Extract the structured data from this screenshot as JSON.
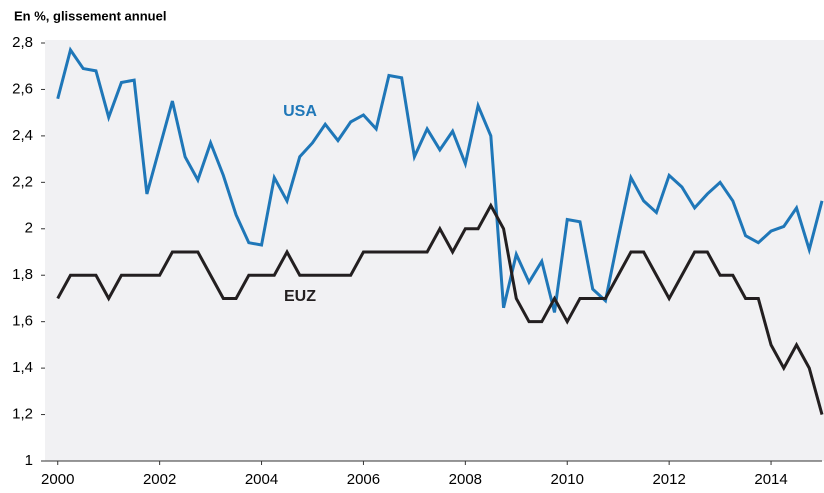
{
  "chart_data": {
    "type": "line",
    "title": "En %, glissement annuel",
    "x": [
      2000,
      2000.25,
      2000.5,
      2000.75,
      2001,
      2001.25,
      2001.5,
      2001.75,
      2002,
      2002.25,
      2002.5,
      2002.75,
      2003,
      2003.25,
      2003.5,
      2003.75,
      2004,
      2004.25,
      2004.5,
      2004.75,
      2005,
      2005.25,
      2005.5,
      2005.75,
      2006,
      2006.25,
      2006.5,
      2006.75,
      2007,
      2007.25,
      2007.5,
      2007.75,
      2008,
      2008.25,
      2008.5,
      2008.75,
      2009,
      2009.25,
      2009.5,
      2009.75,
      2010,
      2010.25,
      2010.5,
      2010.75,
      2011,
      2011.25,
      2011.5,
      2011.75,
      2012,
      2012.25,
      2012.5,
      2012.75,
      2013,
      2013.25,
      2013.5,
      2013.75,
      2014,
      2014.25,
      2014.5,
      2014.75,
      2015
    ],
    "series": [
      {
        "name": "USA",
        "color": "#1f77b8",
        "values": [
          2.56,
          2.77,
          2.69,
          2.68,
          2.48,
          2.63,
          2.64,
          2.15,
          2.35,
          2.55,
          2.31,
          2.21,
          2.37,
          2.23,
          2.06,
          1.94,
          1.93,
          2.22,
          2.12,
          2.31,
          2.37,
          2.45,
          2.38,
          2.46,
          2.49,
          2.43,
          2.66,
          2.65,
          2.31,
          2.43,
          2.34,
          2.42,
          2.28,
          2.53,
          2.4,
          1.66,
          1.89,
          1.77,
          1.86,
          1.64,
          2.04,
          2.03,
          1.74,
          1.69,
          1.96,
          2.22,
          2.12,
          2.07,
          2.23,
          2.18,
          2.09,
          2.15,
          2.2,
          2.12,
          1.97,
          1.94,
          1.99,
          2.01,
          2.09,
          1.91,
          2.12
        ]
      },
      {
        "name": "EUZ",
        "color": "#231f20",
        "values": [
          1.7,
          1.8,
          1.8,
          1.8,
          1.7,
          1.8,
          1.8,
          1.8,
          1.8,
          1.9,
          1.9,
          1.9,
          1.8,
          1.7,
          1.7,
          1.8,
          1.8,
          1.8,
          1.9,
          1.8,
          1.8,
          1.8,
          1.8,
          1.8,
          1.9,
          1.9,
          1.9,
          1.9,
          1.9,
          1.9,
          2.0,
          1.9,
          2.0,
          2.0,
          2.1,
          2.0,
          1.7,
          1.6,
          1.6,
          1.7,
          1.6,
          1.7,
          1.7,
          1.7,
          1.8,
          1.9,
          1.9,
          1.8,
          1.7,
          1.8,
          1.9,
          1.9,
          1.8,
          1.8,
          1.7,
          1.7,
          1.5,
          1.4,
          1.5,
          1.4,
          1.2
        ]
      }
    ],
    "xlim": [
      1999.75,
      2015
    ],
    "xticks": [
      2000,
      2002,
      2004,
      2006,
      2008,
      2010,
      2012,
      2014
    ],
    "ylim": [
      1,
      2.8
    ],
    "yticks": [
      1,
      {
        "value": 1.2,
        "label": "1,2"
      },
      {
        "value": 1.4,
        "label": "1,4"
      },
      {
        "value": 1.6,
        "label": "1,6"
      },
      {
        "value": 1.8,
        "label": "1,8"
      },
      2,
      {
        "value": 2.2,
        "label": "2,2"
      },
      {
        "value": 2.4,
        "label": "2,4"
      },
      {
        "value": 2.6,
        "label": "2,6"
      },
      {
        "value": 2.8,
        "label": "2,8"
      }
    ],
    "grid": false
  }
}
